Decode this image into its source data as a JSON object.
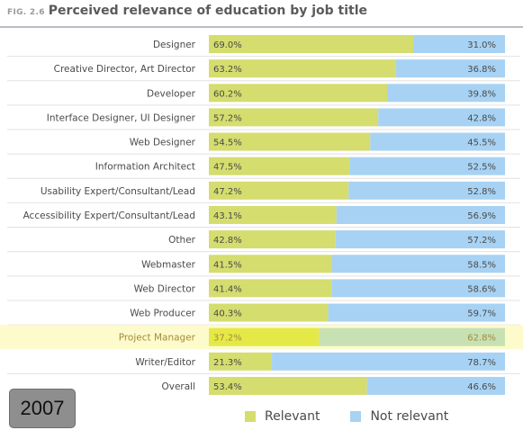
{
  "header": {
    "fig_label": "FIG. 2.6",
    "title": "Perceived relevance of education by job title"
  },
  "badge": {
    "year": "2007"
  },
  "legend": {
    "relevant_label": "Relevant",
    "not_relevant_label": "Not relevant"
  },
  "colors": {
    "relevant": "#d4dd6e",
    "not_relevant": "#a7d2f3",
    "highlight_bg": "#fdfbcc",
    "highlight_relevant": "#e5e947",
    "highlight_not_relevant": "#c7e1b3",
    "highlight_text": "#a58a3a",
    "label_text": "#4a4a4a",
    "row_divider": "#e2e2e2"
  },
  "chart_data": {
    "type": "bar",
    "stacked": true,
    "orientation": "horizontal",
    "title": "Perceived relevance of education by job title",
    "categories": [
      "Designer",
      "Creative Director, Art Director",
      "Developer",
      "Interface Designer, UI Designer",
      "Web Designer",
      "Information Architect",
      "Usability Expert/Consultant/Lead",
      "Accessibility Expert/Consultant/Lead",
      "Other",
      "Webmaster",
      "Web Director",
      "Web Producer",
      "Project Manager",
      "Writer/Editor",
      "Overall"
    ],
    "series": [
      {
        "name": "Relevant",
        "values": [
          69.0,
          63.2,
          60.2,
          57.2,
          54.5,
          47.5,
          47.2,
          43.1,
          42.8,
          41.5,
          41.4,
          40.3,
          37.2,
          21.3,
          53.4
        ],
        "labels": [
          "69.0%",
          "63.2%",
          "60.2%",
          "57.2%",
          "54.5%",
          "47.5%",
          "47.2%",
          "43.1%",
          "42.8%",
          "41.5%",
          "41.4%",
          "40.3%",
          "37.2%",
          "21.3%",
          "53.4%"
        ]
      },
      {
        "name": "Not relevant",
        "values": [
          31.0,
          36.8,
          39.8,
          42.8,
          45.5,
          52.5,
          52.8,
          56.9,
          57.2,
          58.5,
          58.6,
          59.7,
          62.8,
          78.7,
          46.6
        ],
        "labels": [
          "31.0%",
          "36.8%",
          "39.8%",
          "42.8%",
          "45.5%",
          "52.5%",
          "52.8%",
          "56.9%",
          "57.2%",
          "58.5%",
          "58.6%",
          "59.7%",
          "62.8%",
          "78.7%",
          "46.6%"
        ]
      }
    ],
    "highlighted_category": "Project Manager",
    "xlim": [
      0,
      100
    ],
    "legend_position": "bottom"
  }
}
